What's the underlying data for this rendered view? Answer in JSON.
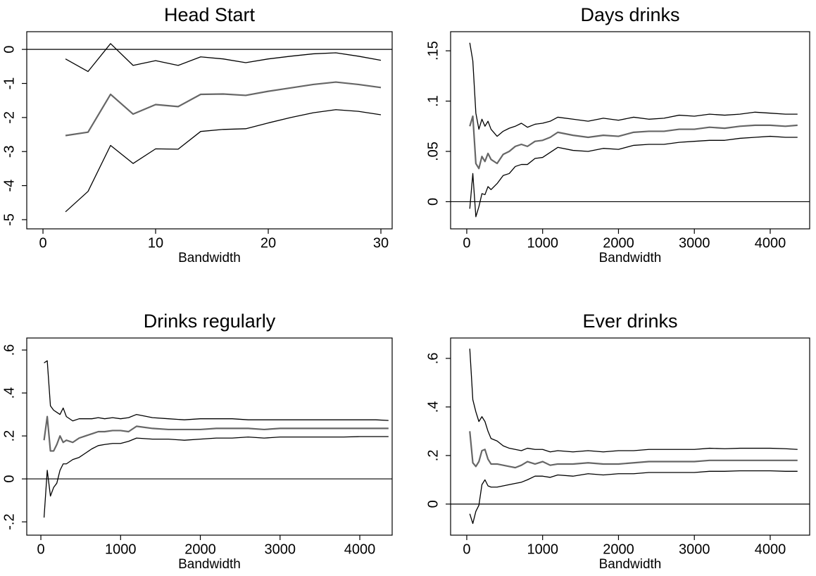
{
  "chart_data": [
    {
      "type": "line",
      "title": "Head Start",
      "xlabel": "Bandwidth",
      "x": [
        2,
        4,
        6,
        8,
        10,
        12,
        14,
        16,
        18,
        20,
        22,
        24,
        26,
        28,
        30
      ],
      "series": [
        {
          "color": "#000000",
          "values": [
            -0.28,
            -0.65,
            0.17,
            -0.47,
            -0.33,
            -0.47,
            -0.22,
            -0.28,
            -0.39,
            -0.28,
            -0.2,
            -0.13,
            -0.1,
            -0.2,
            -0.32
          ]
        },
        {
          "color": "#666666",
          "values": [
            -2.53,
            -2.43,
            -1.32,
            -1.9,
            -1.62,
            -1.68,
            -1.32,
            -1.31,
            -1.35,
            -1.23,
            -1.13,
            -1.03,
            -0.96,
            -1.03,
            -1.12
          ]
        },
        {
          "color": "#000000",
          "values": [
            -4.77,
            -4.17,
            -2.82,
            -3.35,
            -2.92,
            -2.93,
            -2.41,
            -2.35,
            -2.33,
            -2.16,
            -2.0,
            -1.86,
            -1.77,
            -1.82,
            -1.92
          ]
        }
      ],
      "xlim": [
        -1.44,
        31
      ],
      "ylim": [
        -5.27,
        0.52
      ],
      "xticks": [
        0,
        10,
        20,
        30
      ],
      "yticks": [
        0,
        -1,
        -2,
        -3,
        -4,
        -5
      ],
      "hline": 0
    },
    {
      "type": "line",
      "title": "Days drinks",
      "xlabel": "Bandwidth",
      "x": [
        40,
        80,
        120,
        160,
        200,
        240,
        280,
        320,
        400,
        480,
        560,
        640,
        720,
        800,
        900,
        1000,
        1100,
        1200,
        1400,
        1600,
        1800,
        2000,
        2200,
        2400,
        2600,
        2800,
        3000,
        3200,
        3400,
        3600,
        3800,
        4000,
        4200,
        4360
      ],
      "series": [
        {
          "color": "#000000",
          "values": [
            0.158,
            0.14,
            0.088,
            0.072,
            0.082,
            0.075,
            0.08,
            0.072,
            0.065,
            0.07,
            0.073,
            0.075,
            0.078,
            0.074,
            0.077,
            0.078,
            0.08,
            0.084,
            0.082,
            0.08,
            0.083,
            0.081,
            0.084,
            0.082,
            0.083,
            0.086,
            0.085,
            0.087,
            0.086,
            0.087,
            0.089,
            0.088,
            0.087,
            0.087
          ]
        },
        {
          "color": "#666666",
          "values": [
            0.075,
            0.085,
            0.038,
            0.033,
            0.045,
            0.04,
            0.048,
            0.042,
            0.038,
            0.047,
            0.05,
            0.055,
            0.057,
            0.055,
            0.06,
            0.061,
            0.064,
            0.069,
            0.066,
            0.064,
            0.066,
            0.065,
            0.069,
            0.07,
            0.07,
            0.072,
            0.072,
            0.074,
            0.073,
            0.075,
            0.076,
            0.076,
            0.075,
            0.076
          ]
        },
        {
          "color": "#000000",
          "values": [
            -0.007,
            0.028,
            -0.015,
            -0.005,
            0.008,
            0.007,
            0.015,
            0.012,
            0.018,
            0.026,
            0.028,
            0.035,
            0.037,
            0.037,
            0.043,
            0.044,
            0.049,
            0.054,
            0.051,
            0.05,
            0.053,
            0.052,
            0.056,
            0.057,
            0.057,
            0.059,
            0.06,
            0.061,
            0.061,
            0.063,
            0.064,
            0.065,
            0.064,
            0.064
          ]
        }
      ],
      "xlim": [
        -213,
        4520
      ],
      "ylim": [
        -0.027,
        0.169
      ],
      "xticks": [
        0,
        1000,
        2000,
        3000,
        4000
      ],
      "yticks": [
        0,
        {
          "value": 0.05,
          "label": ".05"
        },
        {
          "value": 0.1,
          "label": ".1"
        },
        {
          "value": 0.15,
          "label": ".15"
        }
      ],
      "hline": 0
    },
    {
      "type": "line",
      "title": "Drinks regularly",
      "xlabel": "Bandwidth",
      "x": [
        40,
        80,
        120,
        160,
        200,
        240,
        280,
        320,
        400,
        480,
        560,
        640,
        720,
        800,
        900,
        1000,
        1100,
        1200,
        1400,
        1600,
        1800,
        2000,
        2200,
        2400,
        2600,
        2800,
        3000,
        3200,
        3400,
        3600,
        3800,
        4000,
        4200,
        4360
      ],
      "series": [
        {
          "color": "#000000",
          "values": [
            0.54,
            0.55,
            0.34,
            0.32,
            0.31,
            0.3,
            0.33,
            0.29,
            0.27,
            0.28,
            0.28,
            0.28,
            0.285,
            0.28,
            0.285,
            0.28,
            0.285,
            0.3,
            0.285,
            0.28,
            0.275,
            0.28,
            0.28,
            0.28,
            0.275,
            0.275,
            0.275,
            0.275,
            0.275,
            0.275,
            0.275,
            0.275,
            0.275,
            0.272
          ]
        },
        {
          "color": "#666666",
          "values": [
            0.18,
            0.29,
            0.13,
            0.13,
            0.16,
            0.2,
            0.17,
            0.18,
            0.17,
            0.19,
            0.2,
            0.21,
            0.22,
            0.22,
            0.225,
            0.225,
            0.22,
            0.245,
            0.235,
            0.23,
            0.23,
            0.23,
            0.235,
            0.235,
            0.235,
            0.23,
            0.235,
            0.235,
            0.235,
            0.235,
            0.235,
            0.235,
            0.235,
            0.235
          ]
        },
        {
          "color": "#000000",
          "values": [
            -0.18,
            0.04,
            -0.08,
            -0.04,
            -0.02,
            0.04,
            0.07,
            0.07,
            0.09,
            0.1,
            0.12,
            0.14,
            0.155,
            0.16,
            0.165,
            0.165,
            0.175,
            0.19,
            0.185,
            0.185,
            0.18,
            0.185,
            0.19,
            0.19,
            0.195,
            0.19,
            0.195,
            0.195,
            0.195,
            0.195,
            0.195,
            0.197,
            0.197,
            0.197
          ]
        }
      ],
      "xlim": [
        -177,
        4406
      ],
      "ylim": [
        -0.262,
        0.656
      ],
      "xticks": [
        0,
        1000,
        2000,
        3000,
        4000
      ],
      "yticks": [
        {
          "value": -0.2,
          "label": "-.2"
        },
        0,
        {
          "value": 0.2,
          "label": ".2"
        },
        {
          "value": 0.4,
          "label": ".4"
        },
        {
          "value": 0.6,
          "label": ".6"
        }
      ],
      "hline": 0
    },
    {
      "type": "line",
      "title": "Ever drinks",
      "xlabel": "Bandwidth",
      "x": [
        40,
        80,
        120,
        160,
        200,
        240,
        280,
        320,
        400,
        480,
        560,
        640,
        720,
        800,
        900,
        1000,
        1100,
        1200,
        1400,
        1600,
        1800,
        2000,
        2200,
        2400,
        2600,
        2800,
        3000,
        3200,
        3400,
        3600,
        3800,
        4000,
        4200,
        4360
      ],
      "series": [
        {
          "color": "#000000",
          "values": [
            0.64,
            0.43,
            0.38,
            0.34,
            0.36,
            0.34,
            0.3,
            0.27,
            0.26,
            0.24,
            0.23,
            0.225,
            0.22,
            0.23,
            0.225,
            0.225,
            0.215,
            0.22,
            0.215,
            0.22,
            0.215,
            0.22,
            0.22,
            0.225,
            0.225,
            0.225,
            0.225,
            0.23,
            0.228,
            0.23,
            0.23,
            0.23,
            0.228,
            0.225
          ]
        },
        {
          "color": "#666666",
          "values": [
            0.3,
            0.17,
            0.155,
            0.175,
            0.22,
            0.225,
            0.185,
            0.165,
            0.165,
            0.16,
            0.155,
            0.15,
            0.16,
            0.175,
            0.165,
            0.175,
            0.16,
            0.165,
            0.165,
            0.17,
            0.165,
            0.165,
            0.17,
            0.175,
            0.175,
            0.175,
            0.175,
            0.18,
            0.18,
            0.18,
            0.18,
            0.18,
            0.18,
            0.18
          ]
        },
        {
          "color": "#000000",
          "values": [
            -0.04,
            -0.08,
            -0.03,
            -0.005,
            0.08,
            0.1,
            0.075,
            0.07,
            0.07,
            0.075,
            0.08,
            0.085,
            0.09,
            0.1,
            0.115,
            0.115,
            0.11,
            0.12,
            0.115,
            0.125,
            0.12,
            0.125,
            0.125,
            0.13,
            0.13,
            0.13,
            0.13,
            0.135,
            0.135,
            0.137,
            0.137,
            0.137,
            0.135,
            0.135
          ]
        }
      ],
      "xlim": [
        -213,
        4520
      ],
      "ylim": [
        -0.128,
        0.684
      ],
      "xticks": [
        0,
        1000,
        2000,
        3000,
        4000
      ],
      "yticks": [
        0,
        {
          "value": 0.2,
          "label": ".2"
        },
        {
          "value": 0.4,
          "label": ".4"
        },
        {
          "value": 0.6,
          "label": ".6"
        }
      ],
      "hline": 0
    }
  ]
}
